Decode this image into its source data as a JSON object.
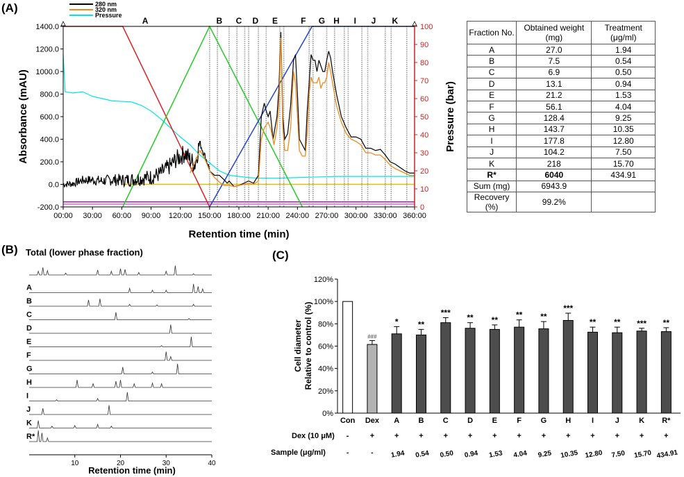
{
  "panel_labels": {
    "a": "(A)",
    "b": "(B)",
    "c": "(C)"
  },
  "chart_data": [
    {
      "type": "line",
      "legend": [
        "280 nm",
        "320 nm",
        "Pressure"
      ],
      "xlabel": "Retention time (min)",
      "ylabel": "Absorbance (mAU)",
      "y2label": "Pressure (bar)",
      "xticks": [
        "00:00",
        "30:00",
        "60:00",
        "90:00",
        "120:00",
        "150:00",
        "180:00",
        "210:00",
        "240:00",
        "270:00",
        "300:00",
        "330:00",
        "360:00"
      ],
      "yticks": [
        "-200.0",
        "0.0",
        "200.0",
        "400.0",
        "600.0",
        "800.0",
        "1000.0",
        "1200.0",
        "1400.0"
      ],
      "y2ticks": [
        "0",
        "10",
        "20",
        "30",
        "40",
        "50",
        "60",
        "70",
        "80",
        "90",
        "100"
      ],
      "xlim": [
        0,
        360
      ],
      "ylim": [
        -200,
        1400
      ],
      "y2lim": [
        0,
        100
      ],
      "colors": {
        "280 nm": "#000000",
        "320 nm": "#f08a1c",
        "Pressure": "#00e6e6",
        "gradient_red": "#e02020",
        "gradient_green": "#22cc22",
        "gradient_blue": "#2244cc",
        "line_yellow": "#d8c010",
        "line_purple": "#a020a0",
        "axis_right": "#d02020"
      },
      "fraction_labels": [
        {
          "label": "A",
          "x": 84
        },
        {
          "label": "B",
          "x": 160
        },
        {
          "label": "C",
          "x": 180
        },
        {
          "label": "D",
          "x": 197
        },
        {
          "label": "E",
          "x": 217
        },
        {
          "label": "F",
          "x": 246
        },
        {
          "label": "G",
          "x": 265
        },
        {
          "label": "H",
          "x": 280
        },
        {
          "label": "I",
          "x": 299
        },
        {
          "label": "J",
          "x": 318
        },
        {
          "label": "K",
          "x": 340
        }
      ],
      "fraction_bounds": [
        150,
        158,
        170,
        178,
        186,
        190,
        200,
        208,
        222,
        226,
        252,
        256,
        270,
        278,
        288,
        292,
        306,
        312,
        330,
        336,
        352
      ],
      "series_280": [
        [
          0,
          -5
        ],
        [
          10,
          0
        ],
        [
          20,
          30
        ],
        [
          30,
          30
        ],
        [
          40,
          20
        ],
        [
          50,
          30
        ],
        [
          60,
          25
        ],
        [
          70,
          30
        ],
        [
          80,
          40
        ],
        [
          90,
          50
        ],
        [
          100,
          80
        ],
        [
          110,
          150
        ],
        [
          115,
          200
        ],
        [
          120,
          230
        ],
        [
          125,
          260
        ],
        [
          130,
          200
        ],
        [
          135,
          160
        ],
        [
          140,
          360
        ],
        [
          145,
          250
        ],
        [
          150,
          130
        ],
        [
          155,
          80
        ],
        [
          160,
          80
        ],
        [
          165,
          40
        ],
        [
          168,
          10
        ],
        [
          170,
          30
        ],
        [
          175,
          -20
        ],
        [
          180,
          -10
        ],
        [
          185,
          10
        ],
        [
          190,
          30
        ],
        [
          195,
          10
        ],
        [
          200,
          80
        ],
        [
          203,
          600
        ],
        [
          206,
          720
        ],
        [
          208,
          650
        ],
        [
          210,
          600
        ],
        [
          212,
          650
        ],
        [
          215,
          400
        ],
        [
          217,
          500
        ],
        [
          219,
          600
        ],
        [
          221,
          850
        ],
        [
          223,
          1350
        ],
        [
          225,
          600
        ],
        [
          227,
          400
        ],
        [
          230,
          450
        ],
        [
          233,
          700
        ],
        [
          236,
          1100
        ],
        [
          238,
          1150
        ],
        [
          240,
          800
        ],
        [
          242,
          400
        ],
        [
          245,
          350
        ],
        [
          248,
          300
        ],
        [
          250,
          650
        ],
        [
          252,
          900
        ],
        [
          254,
          1150
        ],
        [
          256,
          1100
        ],
        [
          258,
          1100
        ],
        [
          260,
          1000
        ],
        [
          262,
          1100
        ],
        [
          264,
          1050
        ],
        [
          266,
          1000
        ],
        [
          268,
          1000
        ],
        [
          270,
          1100
        ],
        [
          272,
          1180
        ],
        [
          274,
          1120
        ],
        [
          276,
          1000
        ],
        [
          280,
          800
        ],
        [
          285,
          600
        ],
        [
          290,
          500
        ],
        [
          295,
          420
        ],
        [
          300,
          420
        ],
        [
          305,
          400
        ],
        [
          310,
          320
        ],
        [
          315,
          320
        ],
        [
          320,
          300
        ],
        [
          325,
          310
        ],
        [
          330,
          260
        ],
        [
          335,
          200
        ],
        [
          340,
          180
        ],
        [
          345,
          150
        ],
        [
          350,
          120
        ],
        [
          355,
          100
        ],
        [
          360,
          100
        ]
      ],
      "series_320": [
        [
          130,
          100
        ],
        [
          135,
          200
        ],
        [
          140,
          300
        ],
        [
          145,
          230
        ],
        [
          150,
          120
        ],
        [
          155,
          60
        ],
        [
          160,
          20
        ],
        [
          165,
          -10
        ],
        [
          170,
          -10
        ],
        [
          175,
          -20
        ],
        [
          180,
          -10
        ],
        [
          190,
          10
        ],
        [
          195,
          0
        ],
        [
          200,
          30
        ],
        [
          203,
          400
        ],
        [
          206,
          500
        ],
        [
          210,
          550
        ],
        [
          213,
          480
        ],
        [
          216,
          350
        ],
        [
          219,
          500
        ],
        [
          221,
          700
        ],
        [
          223,
          1300
        ],
        [
          225,
          500
        ],
        [
          227,
          300
        ],
        [
          230,
          300
        ],
        [
          233,
          500
        ],
        [
          236,
          1000
        ],
        [
          238,
          900
        ],
        [
          240,
          600
        ],
        [
          242,
          300
        ],
        [
          245,
          250
        ],
        [
          248,
          250
        ],
        [
          250,
          450
        ],
        [
          252,
          800
        ],
        [
          254,
          950
        ],
        [
          256,
          900
        ],
        [
          258,
          900
        ],
        [
          260,
          900
        ],
        [
          262,
          950
        ],
        [
          264,
          850
        ],
        [
          266,
          900
        ],
        [
          268,
          900
        ],
        [
          270,
          950
        ],
        [
          272,
          1080
        ],
        [
          274,
          1000
        ],
        [
          276,
          900
        ],
        [
          280,
          700
        ],
        [
          285,
          550
        ],
        [
          290,
          450
        ],
        [
          295,
          400
        ],
        [
          300,
          380
        ],
        [
          305,
          350
        ],
        [
          310,
          280
        ],
        [
          315,
          280
        ],
        [
          320,
          260
        ],
        [
          325,
          260
        ],
        [
          330,
          220
        ],
        [
          335,
          170
        ],
        [
          340,
          140
        ],
        [
          345,
          120
        ],
        [
          350,
          100
        ],
        [
          355,
          80
        ],
        [
          360,
          80
        ]
      ],
      "series_pressure": [
        [
          0,
          1150
        ],
        [
          2,
          820
        ],
        [
          10,
          810
        ],
        [
          20,
          820
        ],
        [
          30,
          780
        ],
        [
          40,
          760
        ],
        [
          50,
          740
        ],
        [
          60,
          735
        ],
        [
          70,
          730
        ],
        [
          80,
          700
        ],
        [
          90,
          650
        ],
        [
          100,
          580
        ],
        [
          110,
          500
        ],
        [
          120,
          420
        ],
        [
          130,
          350
        ],
        [
          140,
          260
        ],
        [
          150,
          190
        ],
        [
          160,
          120
        ],
        [
          170,
          80
        ],
        [
          180,
          70
        ],
        [
          190,
          60
        ],
        [
          200,
          55
        ],
        [
          210,
          55
        ],
        [
          220,
          55
        ],
        [
          240,
          60
        ],
        [
          260,
          65
        ],
        [
          280,
          70
        ],
        [
          300,
          70
        ],
        [
          320,
          70
        ],
        [
          340,
          70
        ],
        [
          360,
          70
        ]
      ],
      "gradient_red": [
        [
          0,
          1400
        ],
        [
          61,
          1400
        ],
        [
          150,
          -200
        ]
      ],
      "gradient_green": [
        [
          61,
          -200
        ],
        [
          150,
          1400
        ],
        [
          245,
          -200
        ]
      ],
      "gradient_blue": [
        [
          150,
          -200
        ],
        [
          255,
          1400
        ],
        [
          360,
          1400
        ]
      ],
      "line_yellow": 0,
      "line_purple": -155
    },
    {
      "type": "line",
      "title": "Total (lower phase fraction)",
      "xlabel": "Retention time (min)",
      "xticks": [
        "10",
        "20",
        "30",
        "40"
      ],
      "xlim": [
        0,
        40
      ],
      "traces": [
        {
          "label": "",
          "peaks": [
            [
              2,
              0.3
            ],
            [
              3,
              0.6
            ],
            [
              4,
              0.35
            ],
            [
              8,
              0.15
            ],
            [
              15,
              0.4
            ],
            [
              18,
              0.3
            ],
            [
              20,
              0.5
            ],
            [
              21,
              0.45
            ],
            [
              24,
              0.2
            ],
            [
              30,
              0.3
            ],
            [
              32,
              0.75
            ],
            [
              36,
              0.1
            ]
          ]
        },
        {
          "label": "A",
          "peaks": [
            [
              22,
              0.35
            ],
            [
              27,
              0.2
            ],
            [
              30,
              0.2
            ],
            [
              36,
              0.7
            ],
            [
              37,
              0.5
            ],
            [
              38,
              0.3
            ]
          ]
        },
        {
          "label": "B",
          "peaks": [
            [
              13,
              0.5
            ],
            [
              15.5,
              0.6
            ],
            [
              22,
              0.15
            ],
            [
              28,
              0.1
            ],
            [
              36,
              0.15
            ]
          ]
        },
        {
          "label": "C",
          "peaks": [
            [
              19,
              0.6
            ],
            [
              35,
              0.1
            ]
          ]
        },
        {
          "label": "D",
          "peaks": [
            [
              31,
              0.7
            ]
          ]
        },
        {
          "label": "E",
          "peaks": [
            [
              29,
              0.1
            ],
            [
              35.5,
              0.8
            ]
          ]
        },
        {
          "label": "F",
          "peaks": [
            [
              30,
              0.7
            ],
            [
              31,
              0.3
            ]
          ]
        },
        {
          "label": "G",
          "peaks": [
            [
              20.5,
              0.55
            ],
            [
              27,
              0.15
            ],
            [
              32.5,
              0.8
            ]
          ]
        },
        {
          "label": "H",
          "peaks": [
            [
              10.5,
              0.6
            ],
            [
              14,
              0.3
            ],
            [
              19,
              0.5
            ],
            [
              20,
              0.6
            ],
            [
              23,
              0.3
            ],
            [
              27,
              0.35
            ],
            [
              29,
              0.3
            ]
          ]
        },
        {
          "label": "I",
          "peaks": [
            [
              6,
              0.1
            ],
            [
              15,
              0.2
            ],
            [
              21.5,
              0.7
            ]
          ]
        },
        {
          "label": "J",
          "peaks": [
            [
              3,
              0.5
            ],
            [
              17.5,
              0.75
            ]
          ]
        },
        {
          "label": "K",
          "peaks": [
            [
              2,
              0.6
            ],
            [
              5,
              0.15
            ],
            [
              10,
              0.2
            ],
            [
              15,
              0.3
            ],
            [
              18,
              0.15
            ]
          ]
        },
        {
          "label": "R*",
          "peaks": [
            [
              2,
              0.9
            ],
            [
              2.8,
              0.7
            ],
            [
              4,
              0.3
            ]
          ]
        }
      ]
    },
    {
      "type": "bar",
      "ylabel": [
        "Cell diameter",
        "Relative to control (%)"
      ],
      "yticks": [
        "0%",
        "20%",
        "40%",
        "60%",
        "80%",
        "100%",
        "120%"
      ],
      "ylim": [
        0,
        120
      ],
      "categories": [
        "Con",
        "Dex",
        "A",
        "B",
        "C",
        "D",
        "E",
        "F",
        "G",
        "H",
        "I",
        "J",
        "K",
        "R*"
      ],
      "values": [
        100,
        61.5,
        71,
        70,
        81,
        76,
        75,
        77,
        75.5,
        83,
        72.5,
        72,
        73.5,
        73
      ],
      "errors": [
        0,
        3.5,
        6.5,
        5,
        4.5,
        5,
        4,
        6.5,
        6.5,
        6.5,
        4.5,
        5,
        2.5,
        3.5
      ],
      "fills": [
        "#ffffff",
        "#b3b3b3",
        "#4d4d4d",
        "#4d4d4d",
        "#4d4d4d",
        "#4d4d4d",
        "#4d4d4d",
        "#4d4d4d",
        "#4d4d4d",
        "#4d4d4d",
        "#4d4d4d",
        "#4d4d4d",
        "#4d4d4d",
        "#4d4d4d"
      ],
      "significance": [
        "",
        "###",
        "*",
        "**",
        "***",
        "**",
        "**",
        "**",
        "**",
        "***",
        "**",
        "**",
        "***",
        "**"
      ],
      "dex_label": "Dex (10 μM)",
      "dex_row": [
        "-",
        "+",
        "+",
        "+",
        "+",
        "+",
        "+",
        "+",
        "+",
        "+",
        "+",
        "+",
        "+",
        "+"
      ],
      "sample_label": "Sample (μg/ml)",
      "sample_row": [
        "-",
        "-",
        "1.94",
        "0.54",
        "0.50",
        "0.94",
        "1.53",
        "4.04",
        "9.25",
        "10.35",
        "12.80",
        "7.50",
        "15.70",
        "434.91"
      ]
    }
  ],
  "table": {
    "headers": [
      "Fraction No.",
      "Obtained weight (mg)",
      "Treatment (μg/ml)"
    ],
    "rows": [
      [
        "A",
        "27.0",
        "1.94"
      ],
      [
        "B",
        "7.5",
        "0.54"
      ],
      [
        "C",
        "6.9",
        "0.50"
      ],
      [
        "D",
        "13.1",
        "0.94"
      ],
      [
        "E",
        "21.2",
        "1.53"
      ],
      [
        "F",
        "56.1",
        "4.04"
      ],
      [
        "G",
        "128.4",
        "9.25"
      ],
      [
        "H",
        "143.7",
        "10.35"
      ],
      [
        "I",
        "177.8",
        "12.80"
      ],
      [
        "J",
        "104.2",
        "7.50"
      ],
      [
        "K",
        "218",
        "15.70"
      ],
      [
        "R*",
        "6040",
        "434.91"
      ],
      [
        "Sum (mg)",
        "6943.9",
        ""
      ],
      [
        "Recovery (%)",
        "99.2%",
        ""
      ]
    ]
  }
}
